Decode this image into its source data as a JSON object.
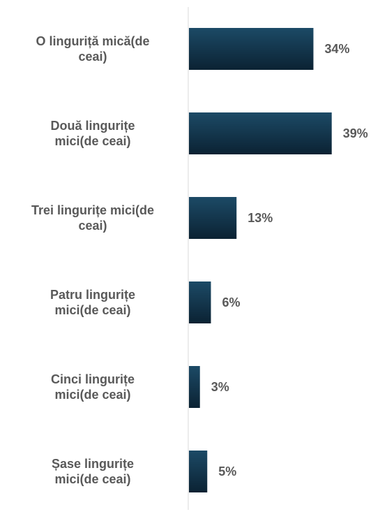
{
  "chart_data": {
    "type": "bar",
    "orientation": "horizontal",
    "categories": [
      "O linguriță mică(de ceai)",
      "Două lingurițe mici(de ceai)",
      "Trei lingurițe mici(de ceai)",
      "Patru lingurițe mici(de ceai)",
      "Cinci lingurițe mici(de ceai)",
      "Șase lingurițe mici(de ceai)"
    ],
    "values": [
      34,
      39,
      13,
      6,
      3,
      5
    ],
    "value_labels": [
      "34%",
      "39%",
      "13%",
      "6%",
      "3%",
      "5%"
    ],
    "category_label_lines": [
      [
        "O linguriță mică(de",
        "ceai)"
      ],
      [
        "Două lingurițe",
        "mici(de ceai)"
      ],
      [
        "Trei lingurițe mici(de",
        "ceai)"
      ],
      [
        "Patru lingurițe",
        "mici(de ceai)"
      ],
      [
        "Cinci lingurițe",
        "mici(de ceai)"
      ],
      [
        "Șase lingurițe",
        "mici(de ceai)"
      ]
    ],
    "title": "",
    "xlabel": "",
    "ylabel": "",
    "xlim": [
      0,
      40
    ],
    "grid": false,
    "legend": "none",
    "colors": {
      "bar_top": "#1c4a66",
      "bar_bottom": "#0b2233",
      "axis": "#d9d9d9",
      "text": "#595959"
    }
  }
}
